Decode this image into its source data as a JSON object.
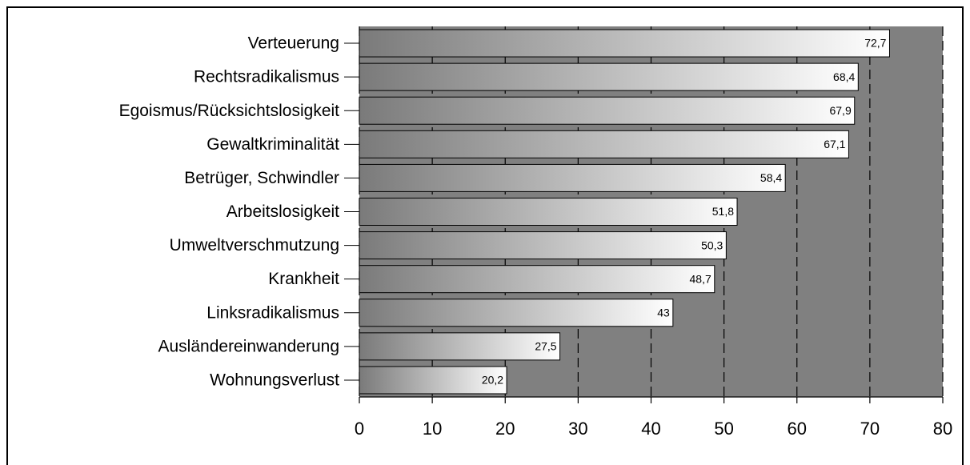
{
  "chart_data": {
    "type": "barh",
    "categories": [
      "Verteuerung",
      "Rechtsradikalismus",
      "Egoismus/Rücksichtslosigkeit",
      "Gewaltkriminalität",
      "Betrüger, Schwindler",
      "Arbeitslosigkeit",
      "Umweltverschmutzung",
      "Krankheit",
      "Linksradikalismus",
      "Ausländereinwanderung",
      "Wohnungsverlust"
    ],
    "values": [
      72.7,
      68.4,
      67.9,
      67.1,
      58.4,
      51.8,
      50.3,
      48.7,
      43,
      27.5,
      20.2
    ],
    "value_labels": [
      "72,7",
      "68,4",
      "67,9",
      "67,1",
      "58,4",
      "51,8",
      "50,3",
      "48,7",
      "43",
      "27,5",
      "20,2"
    ],
    "xlim": [
      0,
      80
    ],
    "xticks": [
      0,
      10,
      20,
      30,
      40,
      50,
      60,
      70,
      80
    ],
    "grid": true,
    "color": "#808080"
  }
}
